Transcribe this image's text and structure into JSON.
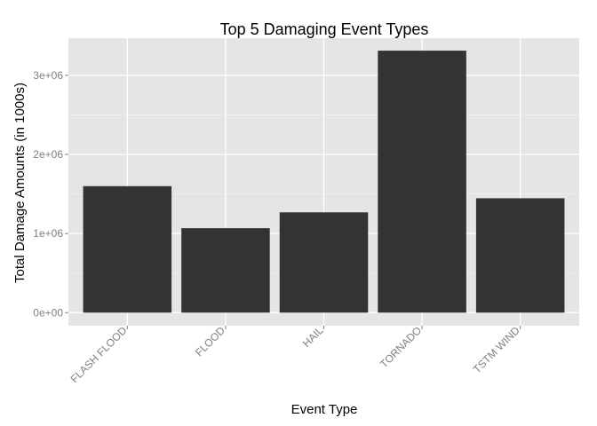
{
  "chart_data": {
    "type": "bar",
    "title": "Top 5 Damaging Event Types",
    "xlabel": "Event Type",
    "ylabel": "Total Damage Amounts (in 1000s)",
    "categories": [
      "FLASH FLOOD",
      "FLOOD",
      "HAIL",
      "TORNADO",
      "TSTM WIND"
    ],
    "values": [
      1599000,
      1068000,
      1268000,
      3312000,
      1446000
    ],
    "ylim": [
      -165000,
      3470000
    ],
    "yticks": [
      0,
      1000000,
      2000000,
      3000000
    ],
    "ytick_labels": [
      "0e+00",
      "1e+06",
      "2e+06",
      "3e+06"
    ],
    "grid": true,
    "legend": "none",
    "colors": {
      "bar": "#333333",
      "panel": "#e5e5e5",
      "grid_major": "#ffffff",
      "grid_minor": "#f2f2f2",
      "tick_label": "#7f7f7f"
    }
  }
}
